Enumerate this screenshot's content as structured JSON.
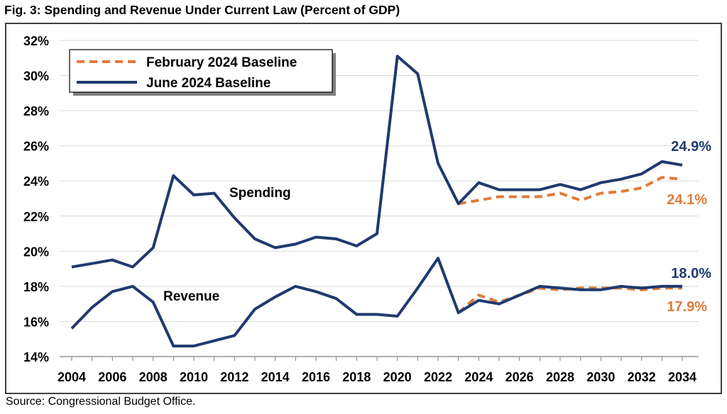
{
  "title": "Fig. 3: Spending and Revenue Under Current Law (Percent of GDP)",
  "source": "Source: Congressional Budget Office.",
  "chart_data": {
    "type": "line",
    "ylim": [
      14,
      32
    ],
    "yticks": [
      14,
      16,
      18,
      20,
      22,
      24,
      26,
      28,
      30,
      32
    ],
    "ytick_format": "%",
    "xlim": [
      2004,
      2034
    ],
    "xticks": [
      2004,
      2006,
      2008,
      2010,
      2012,
      2014,
      2016,
      2018,
      2020,
      2022,
      2024,
      2026,
      2028,
      2030,
      2032,
      2034
    ],
    "grid": true,
    "legend_position": "top-left",
    "legend": [
      {
        "label": "February 2024 Baseline",
        "color": "#E07B39",
        "style": "dashed"
      },
      {
        "label": "June 2024 Baseline",
        "color": "#1F3A6E",
        "style": "solid"
      }
    ],
    "annotations": {
      "spending_label": "Spending",
      "revenue_label": "Revenue",
      "june_spending_end": "24.9%",
      "feb_spending_end": "24.1%",
      "june_revenue_end": "18.0%",
      "feb_revenue_end": "17.9%"
    },
    "series": [
      {
        "name": "June 2024 Baseline",
        "metric": "Spending",
        "color": "#1F3A6E",
        "style": "solid",
        "x": [
          2004,
          2005,
          2006,
          2007,
          2008,
          2009,
          2010,
          2011,
          2012,
          2013,
          2014,
          2015,
          2016,
          2017,
          2018,
          2019,
          2020,
          2021,
          2022,
          2023,
          2024,
          2025,
          2026,
          2027,
          2028,
          2029,
          2030,
          2031,
          2032,
          2033,
          2034
        ],
        "values": [
          19.1,
          19.3,
          19.5,
          19.1,
          20.2,
          24.3,
          23.2,
          23.3,
          21.9,
          20.7,
          20.2,
          20.4,
          20.8,
          20.7,
          20.3,
          21.0,
          31.1,
          30.1,
          25.0,
          22.7,
          23.9,
          23.5,
          23.5,
          23.5,
          23.8,
          23.5,
          23.9,
          24.1,
          24.4,
          25.1,
          24.9
        ]
      },
      {
        "name": "June 2024 Baseline",
        "metric": "Revenue",
        "color": "#1F3A6E",
        "style": "solid",
        "x": [
          2004,
          2005,
          2006,
          2007,
          2008,
          2009,
          2010,
          2011,
          2012,
          2013,
          2014,
          2015,
          2016,
          2017,
          2018,
          2019,
          2020,
          2021,
          2022,
          2023,
          2024,
          2025,
          2026,
          2027,
          2028,
          2029,
          2030,
          2031,
          2032,
          2033,
          2034
        ],
        "values": [
          15.6,
          16.8,
          17.7,
          18.0,
          17.1,
          14.6,
          14.6,
          14.9,
          15.2,
          16.7,
          17.4,
          18.0,
          17.7,
          17.3,
          16.4,
          16.4,
          16.3,
          17.9,
          19.6,
          16.5,
          17.2,
          17.0,
          17.5,
          18.0,
          17.9,
          17.8,
          17.8,
          18.0,
          17.9,
          18.0,
          18.0
        ]
      },
      {
        "name": "February 2024 Baseline",
        "metric": "Spending",
        "color": "#E07B39",
        "style": "dashed",
        "x": [
          2023,
          2024,
          2025,
          2026,
          2027,
          2028,
          2029,
          2030,
          2031,
          2032,
          2033,
          2034
        ],
        "values": [
          22.7,
          22.9,
          23.1,
          23.1,
          23.1,
          23.3,
          22.9,
          23.3,
          23.4,
          23.6,
          24.2,
          24.1
        ]
      },
      {
        "name": "February 2024 Baseline",
        "metric": "Revenue",
        "color": "#E07B39",
        "style": "dashed",
        "x": [
          2023,
          2024,
          2025,
          2026,
          2027,
          2028,
          2029,
          2030,
          2031,
          2032,
          2033,
          2034
        ],
        "values": [
          16.5,
          17.5,
          17.1,
          17.5,
          17.9,
          17.8,
          17.9,
          17.9,
          17.9,
          17.8,
          17.9,
          17.9
        ]
      }
    ]
  }
}
